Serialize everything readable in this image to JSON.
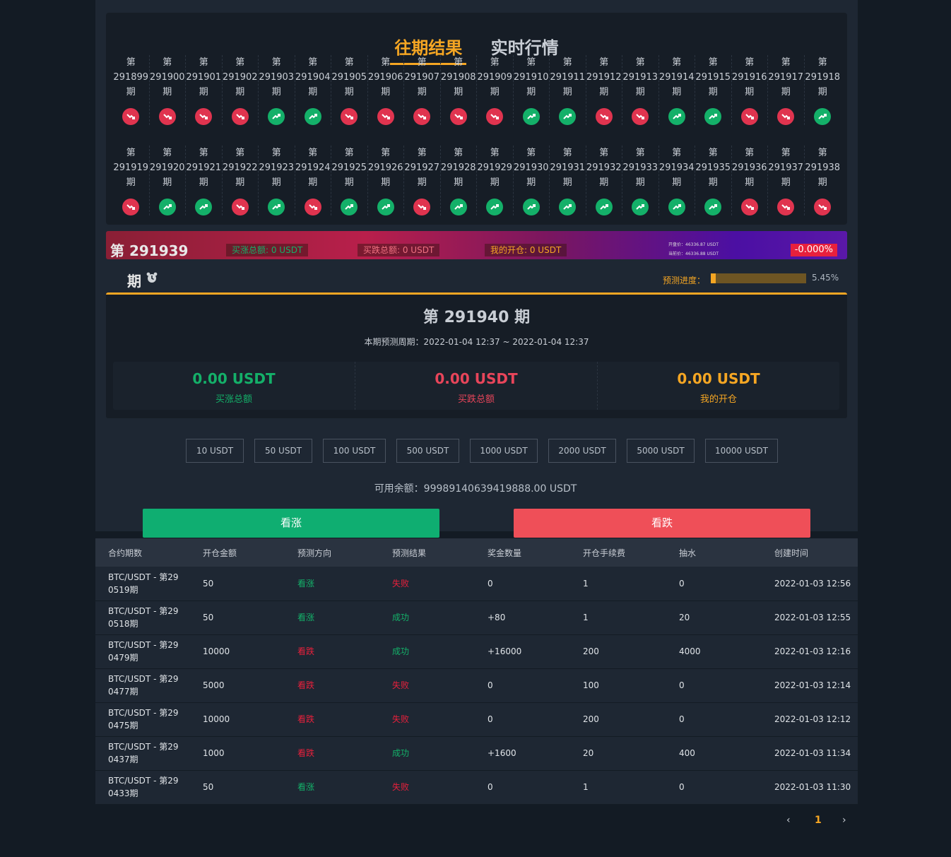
{
  "tabs": {
    "active": "往期结果",
    "inactive": "实时行情"
  },
  "results_row1": [
    {
      "period": "291899",
      "dir": "down"
    },
    {
      "period": "291900",
      "dir": "down"
    },
    {
      "period": "291901",
      "dir": "down"
    },
    {
      "period": "291902",
      "dir": "down"
    },
    {
      "period": "291903",
      "dir": "up"
    },
    {
      "period": "291904",
      "dir": "up"
    },
    {
      "period": "291905",
      "dir": "down"
    },
    {
      "period": "291906",
      "dir": "down"
    },
    {
      "period": "291907",
      "dir": "down"
    },
    {
      "period": "291908",
      "dir": "down"
    },
    {
      "period": "291909",
      "dir": "down"
    },
    {
      "period": "291910",
      "dir": "up"
    },
    {
      "period": "291911",
      "dir": "up"
    },
    {
      "period": "291912",
      "dir": "down"
    },
    {
      "period": "291913",
      "dir": "down"
    },
    {
      "period": "291914",
      "dir": "up"
    },
    {
      "period": "291915",
      "dir": "up"
    },
    {
      "period": "291916",
      "dir": "down"
    },
    {
      "period": "291917",
      "dir": "down"
    },
    {
      "period": "291918",
      "dir": "up"
    }
  ],
  "results_row2": [
    {
      "period": "291919",
      "dir": "down"
    },
    {
      "period": "291920",
      "dir": "up"
    },
    {
      "period": "291921",
      "dir": "up"
    },
    {
      "period": "291922",
      "dir": "down"
    },
    {
      "period": "291923",
      "dir": "up"
    },
    {
      "period": "291924",
      "dir": "down"
    },
    {
      "period": "291925",
      "dir": "up"
    },
    {
      "period": "291926",
      "dir": "up"
    },
    {
      "period": "291927",
      "dir": "down"
    },
    {
      "period": "291928",
      "dir": "up"
    },
    {
      "period": "291929",
      "dir": "up"
    },
    {
      "period": "291930",
      "dir": "up"
    },
    {
      "period": "291931",
      "dir": "up"
    },
    {
      "period": "291932",
      "dir": "up"
    },
    {
      "period": "291933",
      "dir": "up"
    },
    {
      "period": "291934",
      "dir": "up"
    },
    {
      "period": "291935",
      "dir": "up"
    },
    {
      "period": "291936",
      "dir": "down"
    },
    {
      "period": "291937",
      "dir": "down"
    },
    {
      "period": "291938",
      "dir": "down"
    }
  ],
  "period_prefix": "第",
  "period_suffix": "期",
  "banner": {
    "title": "第 291939",
    "buy_up": "买涨总额: 0 USDT",
    "buy_down": "买跌总额: 0 USDT",
    "my_position": "我的开仓: 0 USDT",
    "open_price": "开盘价：46336.87 USDT",
    "current_price": "当前价：46336.88 USDT",
    "change": "-0.000%"
  },
  "period_tail": "期",
  "progress": {
    "label": "预测进度：",
    "percent_text": "5.45%",
    "value": 0.0545
  },
  "panel": {
    "title": "第 291940 期",
    "cycle": "本期预测周期：2022-01-04 12:37 ~ 2022-01-04 12:37",
    "stats": [
      {
        "value": "0.00 USDT",
        "label": "买涨总额",
        "color": "green"
      },
      {
        "value": "0.00 USDT",
        "label": "买跌总额",
        "color": "red"
      },
      {
        "value": "0.00 USDT",
        "label": "我的开仓",
        "color": "orange"
      }
    ]
  },
  "amounts": [
    "10 USDT",
    "50 USDT",
    "100 USDT",
    "500 USDT",
    "1000 USDT",
    "2000 USDT",
    "5000 USDT",
    "10000 USDT"
  ],
  "balance": "可用余额：99989140639419888.00 USDT",
  "buttons": {
    "up": "看涨",
    "down": "看跌"
  },
  "table": {
    "headers": [
      "合约期数",
      "开仓金额",
      "预测方向",
      "预测结果",
      "奖金数量",
      "开仓手续费",
      "抽水",
      "创建时间"
    ],
    "rows": [
      {
        "contract_l1": "BTC/USDT - 第29",
        "contract_l2": "0519期",
        "amount": "50",
        "dir": "看涨",
        "dir_c": "g",
        "result": "失败",
        "res_c": "r",
        "bonus": "0",
        "fee": "1",
        "draw": "0",
        "time": "2022-01-03 12:56"
      },
      {
        "contract_l1": "BTC/USDT - 第29",
        "contract_l2": "0518期",
        "amount": "50",
        "dir": "看涨",
        "dir_c": "g",
        "result": "成功",
        "res_c": "g",
        "bonus": "+80",
        "fee": "1",
        "draw": "20",
        "time": "2022-01-03 12:55"
      },
      {
        "contract_l1": "BTC/USDT - 第29",
        "contract_l2": "0479期",
        "amount": "10000",
        "dir": "看跌",
        "dir_c": "r",
        "result": "成功",
        "res_c": "g",
        "bonus": "+16000",
        "fee": "200",
        "draw": "4000",
        "time": "2022-01-03 12:16"
      },
      {
        "contract_l1": "BTC/USDT - 第29",
        "contract_l2": "0477期",
        "amount": "5000",
        "dir": "看跌",
        "dir_c": "r",
        "result": "失败",
        "res_c": "r",
        "bonus": "0",
        "fee": "100",
        "draw": "0",
        "time": "2022-01-03 12:14"
      },
      {
        "contract_l1": "BTC/USDT - 第29",
        "contract_l2": "0475期",
        "amount": "10000",
        "dir": "看跌",
        "dir_c": "r",
        "result": "失败",
        "res_c": "r",
        "bonus": "0",
        "fee": "200",
        "draw": "0",
        "time": "2022-01-03 12:12"
      },
      {
        "contract_l1": "BTC/USDT - 第29",
        "contract_l2": "0437期",
        "amount": "1000",
        "dir": "看跌",
        "dir_c": "r",
        "result": "成功",
        "res_c": "g",
        "bonus": "+1600",
        "fee": "20",
        "draw": "400",
        "time": "2022-01-03 11:34"
      },
      {
        "contract_l1": "BTC/USDT - 第29",
        "contract_l2": "0433期",
        "amount": "50",
        "dir": "看涨",
        "dir_c": "g",
        "result": "失败",
        "res_c": "r",
        "bonus": "0",
        "fee": "1",
        "draw": "0",
        "time": "2022-01-03 11:30"
      }
    ]
  },
  "pagination": {
    "prev": "‹",
    "current": "1",
    "next": "›"
  }
}
